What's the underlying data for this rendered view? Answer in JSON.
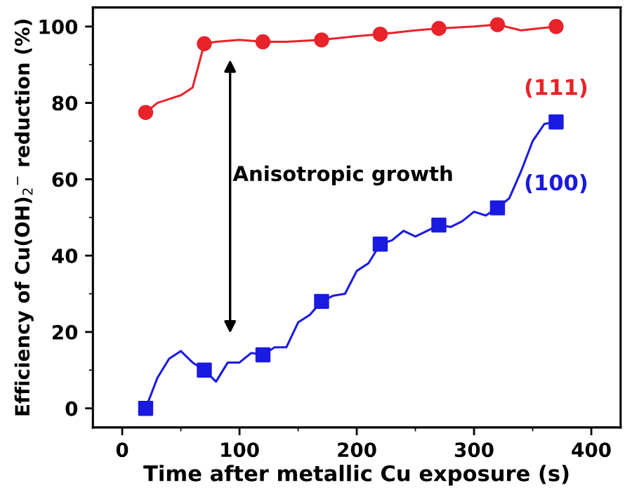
{
  "chart_data": {
    "type": "line",
    "xlabel": "Time after metallic Cu exposure (s)",
    "ylabel": "Efficiency of Cu(OH)$_{2}$$^{−}$ reduction (%)",
    "annotations": [
      "Anisotropic growth"
    ],
    "xlim": [
      -25,
      425
    ],
    "xticks": [
      0,
      100,
      200,
      300,
      400
    ],
    "ylim": [
      -5,
      105
    ],
    "yticks": [
      0,
      20,
      40,
      60,
      80,
      100
    ],
    "grid": false,
    "legend": false,
    "series": [
      {
        "name": "(111)",
        "color": "#e8232a",
        "marker": "none",
        "x": [
          20,
          30,
          40,
          50,
          60,
          70,
          80,
          100,
          120,
          140,
          170,
          200,
          220,
          250,
          270,
          300,
          320,
          340,
          370
        ],
        "values": [
          77.5,
          80,
          81,
          82,
          84,
          95.5,
          96,
          96.5,
          96,
          96,
          96.5,
          97.5,
          98,
          99,
          99.5,
          100,
          100.5,
          99,
          100
        ]
      },
      {
        "color": "#e8232a",
        "type": "scatter",
        "marker": "circle",
        "x": [
          20,
          70,
          120,
          170,
          220,
          270,
          320,
          370
        ],
        "values": [
          77.5,
          95.5,
          96,
          96.5,
          98,
          99.5,
          100.5,
          100
        ]
      },
      {
        "name": "(100)",
        "color": "#1a1ae0",
        "marker": "none",
        "x": [
          20,
          30,
          40,
          50,
          60,
          70,
          80,
          90,
          100,
          110,
          120,
          130,
          140,
          150,
          160,
          170,
          180,
          190,
          200,
          210,
          220,
          230,
          240,
          250,
          260,
          270,
          280,
          290,
          300,
          310,
          320,
          330,
          340,
          350,
          360,
          370
        ],
        "values": [
          0,
          8,
          13,
          15,
          12,
          10,
          7,
          12,
          12,
          14.5,
          14,
          16,
          16,
          22.5,
          24.5,
          28,
          29.5,
          30,
          36,
          38,
          43,
          44,
          46.5,
          45,
          46.5,
          48,
          47.5,
          49,
          51.5,
          50.5,
          52.5,
          55,
          62,
          70,
          74.5,
          75
        ]
      },
      {
        "color": "#1a1ae0",
        "type": "scatter",
        "marker": "square",
        "x": [
          20,
          70,
          120,
          170,
          220,
          270,
          320,
          370
        ],
        "values": [
          0,
          10,
          14,
          28,
          43,
          48,
          52.5,
          75
        ]
      }
    ]
  }
}
